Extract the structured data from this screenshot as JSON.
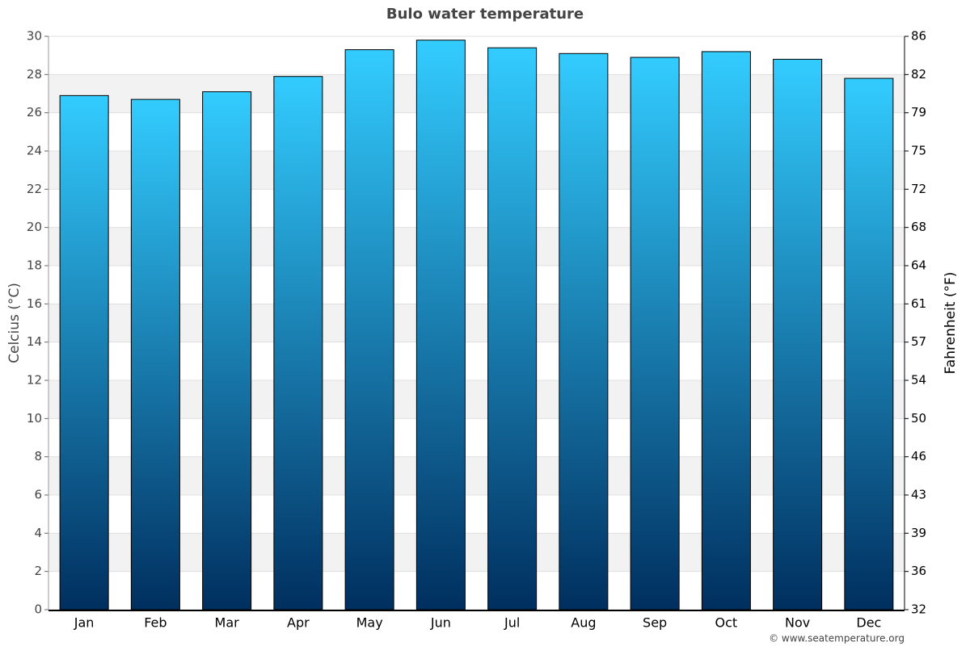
{
  "chart_data": {
    "type": "bar",
    "title": "Bulo water temperature",
    "y_label": "Celcius (°C)",
    "y2_label": "Fahrenheit (°F)",
    "source": "© www.seatemperature.org",
    "categories": [
      "Jan",
      "Feb",
      "Mar",
      "Apr",
      "May",
      "Jun",
      "Jul",
      "Aug",
      "Sep",
      "Oct",
      "Nov",
      "Dec"
    ],
    "values": [
      26.9,
      26.7,
      27.1,
      27.9,
      29.3,
      29.8,
      29.4,
      29.1,
      28.9,
      29.2,
      28.8,
      27.8
    ],
    "gradient": [
      "#33ccff",
      "#002f5f"
    ],
    "ylim": [
      0,
      30
    ],
    "yticks": [
      0,
      2,
      4,
      6,
      8,
      10,
      12,
      14,
      16,
      18,
      20,
      22,
      24,
      26,
      28,
      30
    ],
    "y2lim": [
      32,
      86
    ],
    "y2ticks": [
      32,
      {
        "value": 35.6,
        "label": "36"
      },
      {
        "value": 39.2,
        "label": "39"
      },
      {
        "value": 42.8,
        "label": "43"
      },
      {
        "value": 46.4,
        "label": "46"
      },
      50,
      {
        "value": 53.6,
        "label": "54"
      },
      {
        "value": 57.2,
        "label": "57"
      },
      {
        "value": 60.8,
        "label": "61"
      },
      {
        "value": 64.4,
        "label": "64"
      },
      68,
      {
        "value": 71.6,
        "label": "72"
      },
      {
        "value": 75.2,
        "label": "75"
      },
      {
        "value": 78.8,
        "label": "79"
      },
      {
        "value": 82.4,
        "label": "82"
      },
      86
    ],
    "grid": true
  }
}
